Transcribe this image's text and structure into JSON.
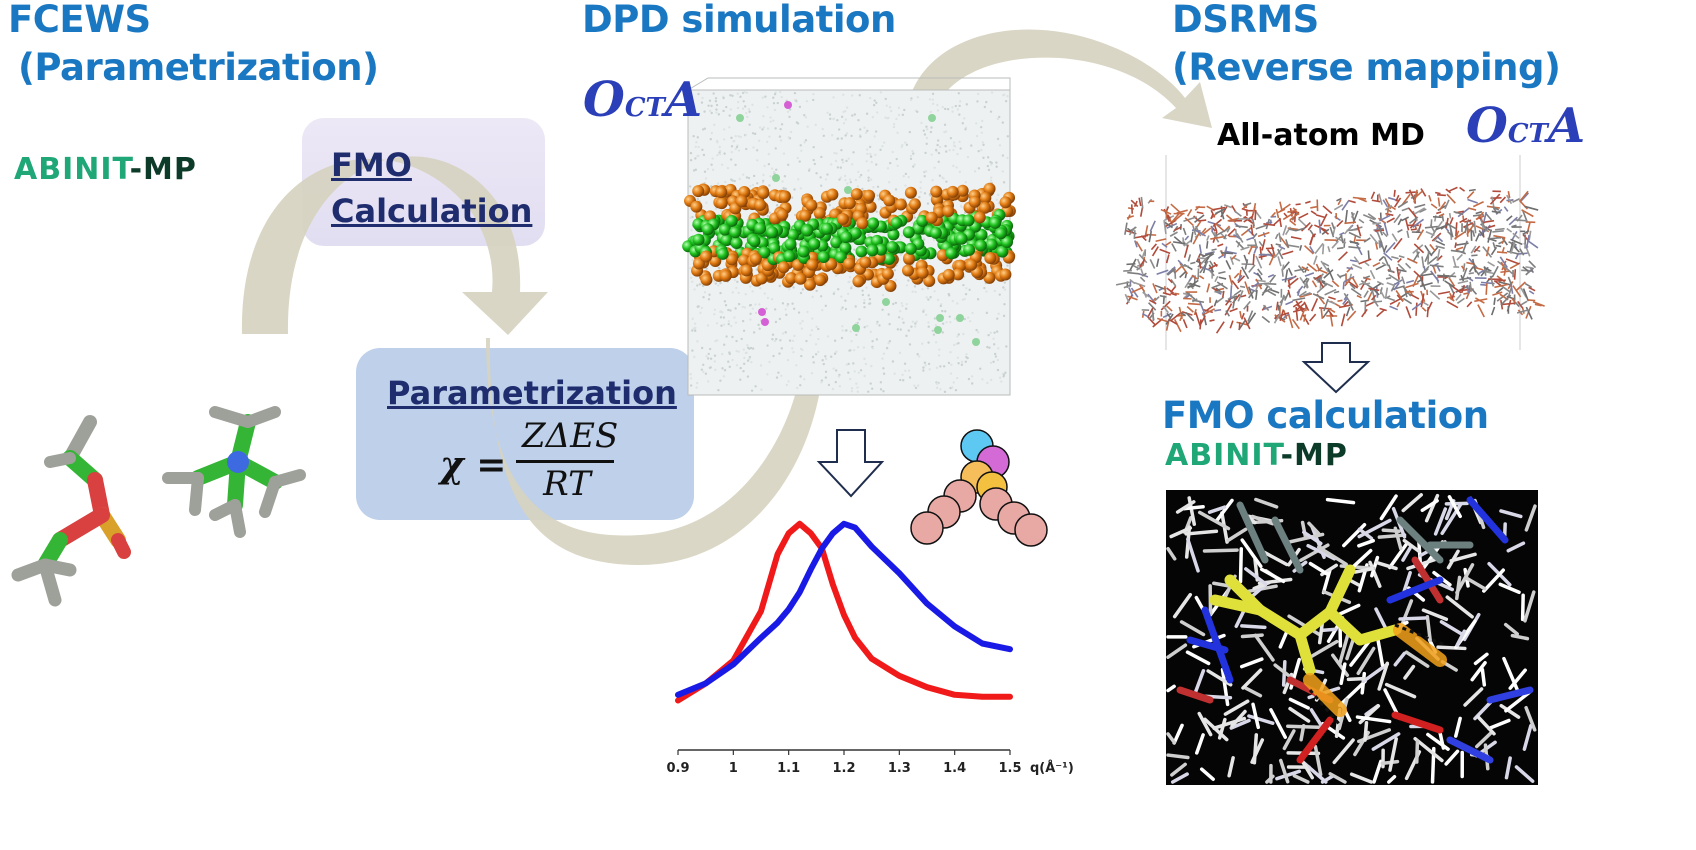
{
  "headings": {
    "fcews_line1": "FCEWS",
    "fcews_line2": "(Parametrization)",
    "dpd": "DPD simulation",
    "dsrms_line1": "DSRMS",
    "dsrms_line2": "(Reverse mapping)",
    "fmo_calc": "FMO calculation"
  },
  "software": {
    "abinit_a": "ABINIT",
    "abinit_b": "-MP",
    "octa_main": "O",
    "octa_sub": "CT",
    "octa_tail": "A",
    "all_atom_md": "All-atom MD"
  },
  "boxes": {
    "fmo_line1": "FMO",
    "fmo_line2": "Calculation",
    "param_title": "Parametrization",
    "formula_lhs": "χ =",
    "formula_num": "ZΔES",
    "formula_den": "RT"
  },
  "chart_data": {
    "type": "line",
    "x": [
      0.9,
      0.95,
      1.0,
      1.05,
      1.08,
      1.1,
      1.12,
      1.14,
      1.16,
      1.18,
      1.2,
      1.22,
      1.25,
      1.3,
      1.35,
      1.4,
      1.45,
      1.5
    ],
    "series": [
      {
        "values": [
          0.05,
          0.14,
          0.26,
          0.52,
          0.82,
          0.93,
          0.98,
          0.93,
          0.85,
          0.66,
          0.5,
          0.38,
          0.27,
          0.18,
          0.12,
          0.08,
          0.07,
          0.07
        ]
      },
      {
        "values": [
          0.08,
          0.14,
          0.24,
          0.38,
          0.46,
          0.53,
          0.62,
          0.74,
          0.85,
          0.93,
          0.98,
          0.96,
          0.86,
          0.72,
          0.56,
          0.44,
          0.35,
          0.32
        ]
      }
    ],
    "colors": [
      "#f01a1a",
      "#1a1ae6"
    ],
    "xlim": [
      0.9,
      1.5
    ],
    "xticks": [
      "0.9",
      "1",
      "1.1",
      "1.2",
      "1.3",
      "1.4",
      "1.5"
    ],
    "xlabel": "q(Å⁻¹)",
    "grid": false
  }
}
